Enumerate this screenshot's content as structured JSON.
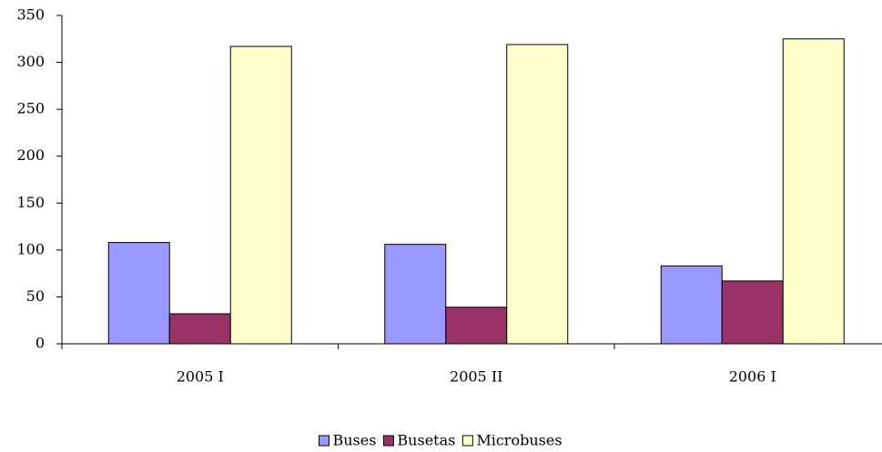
{
  "chart_data": {
    "type": "bar",
    "categories": [
      "2005 I",
      "2005 II",
      "2006 I"
    ],
    "series": [
      {
        "name": "Buses",
        "color": "#9999ff",
        "values": [
          108,
          106,
          83
        ]
      },
      {
        "name": "Busetas",
        "color": "#993366",
        "values": [
          32,
          39,
          67
        ]
      },
      {
        "name": "Microbuses",
        "color": "#ffffcc",
        "values": [
          317,
          319,
          325
        ]
      }
    ],
    "ylim": [
      0,
      350
    ],
    "yticks": [
      0,
      50,
      100,
      150,
      200,
      250,
      300,
      350
    ],
    "legend": "bottom"
  }
}
